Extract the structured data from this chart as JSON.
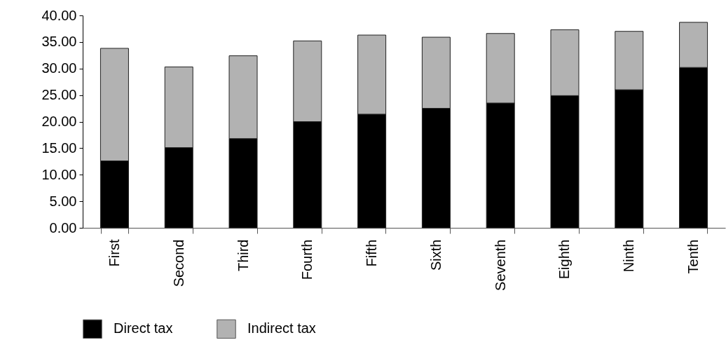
{
  "chart_data": {
    "type": "bar",
    "stacked": true,
    "legend": "bottom",
    "grid": false,
    "categories": [
      "First",
      "Second",
      "Third",
      "Fourth",
      "Fifth",
      "Sixth",
      "Seventh",
      "Eighth",
      "Ninth",
      "Tenth"
    ],
    "series": [
      {
        "name": "Direct tax",
        "color": "#000000",
        "values": [
          12.6,
          15.1,
          16.8,
          20.0,
          21.4,
          22.5,
          23.5,
          24.9,
          26.0,
          30.2
        ]
      },
      {
        "name": "Indirect tax",
        "color": "#b2b2b2",
        "values": [
          21.2,
          15.2,
          15.6,
          15.2,
          14.9,
          13.4,
          13.1,
          12.4,
          11.0,
          8.5
        ]
      }
    ],
    "ylim": [
      0,
      40
    ],
    "yticks": [
      {
        "value": 0,
        "label": "0.00"
      },
      {
        "value": 5,
        "label": "5.00"
      },
      {
        "value": 10,
        "label": "10.00"
      },
      {
        "value": 15,
        "label": "15.00"
      },
      {
        "value": 20,
        "label": "20.00"
      },
      {
        "value": 25,
        "label": "25.00"
      },
      {
        "value": 30,
        "label": "30.00"
      },
      {
        "value": 35,
        "label": "35.00"
      },
      {
        "value": 40,
        "label": "40.00"
      }
    ]
  }
}
